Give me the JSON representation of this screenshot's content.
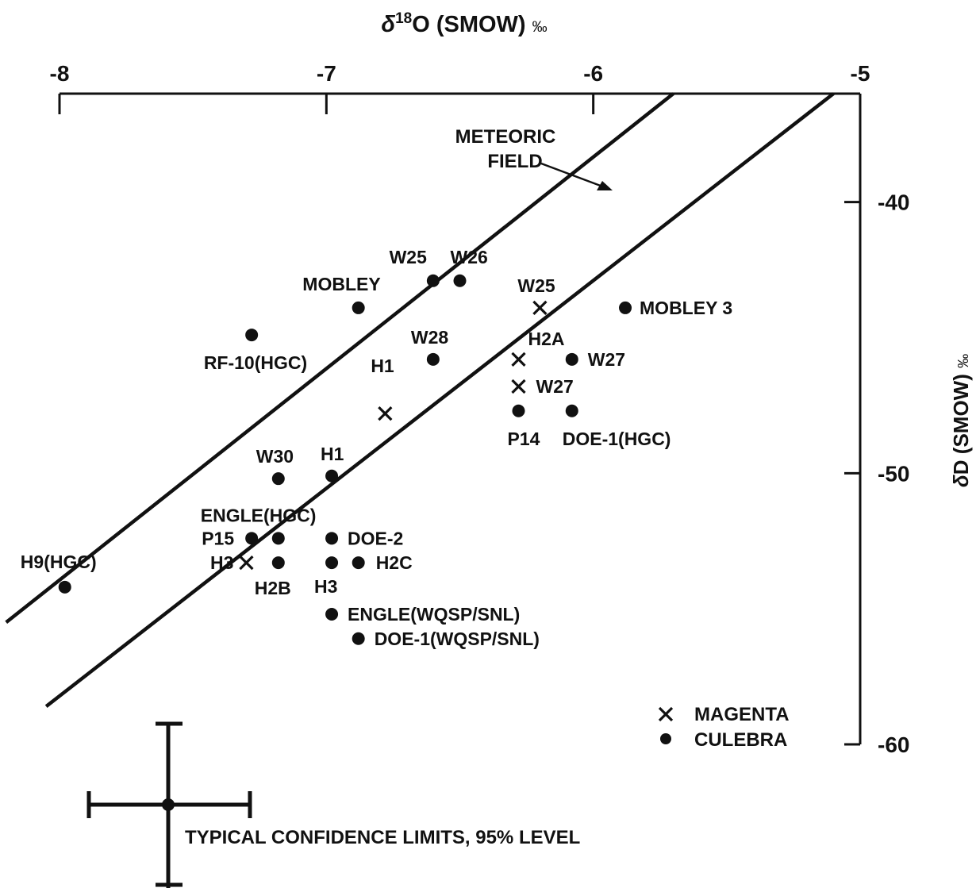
{
  "chart_data": {
    "type": "scatter",
    "title": "",
    "xlabel": "δ18O (SMOW) ‰",
    "xlabel_parts": {
      "delta": "δ",
      "sup": "18",
      "main": "O (SMOW) ",
      "unit": "‰"
    },
    "ylabel": "δD (SMOW) ‰",
    "xlim": [
      -8,
      -5
    ],
    "ylim": [
      -60,
      -36
    ],
    "x_axis_position": "top",
    "y_axis_position": "right",
    "x_ticks": [
      -8,
      -7,
      -6,
      -5
    ],
    "x_tick_labels": [
      "-8",
      "-7",
      "-6",
      "-5"
    ],
    "y_ticks": [
      -40,
      -50,
      -60
    ],
    "y_tick_labels": [
      "-40",
      "-50",
      "-60"
    ],
    "grid": false,
    "legend": {
      "position": "bottom-right",
      "entries": [
        {
          "marker": "x",
          "label": "MAGENTA"
        },
        {
          "marker": "dot",
          "label": "CULEBRA"
        }
      ]
    },
    "series": [
      {
        "name": "MAGENTA",
        "marker": "x",
        "points": [
          {
            "label": "W25",
            "x": -6.2,
            "y": -43.9
          },
          {
            "label": "H2A",
            "x": -6.28,
            "y": -45.8
          },
          {
            "label": "W27",
            "x": -6.28,
            "y": -46.8
          },
          {
            "label": "H1",
            "x": -6.78,
            "y": -47.8
          },
          {
            "label": "H3",
            "x": -7.3,
            "y": -53.3
          }
        ]
      },
      {
        "name": "CULEBRA",
        "marker": "dot",
        "points": [
          {
            "label": "W25",
            "x": -6.6,
            "y": -42.9
          },
          {
            "label": "W26",
            "x": -6.5,
            "y": -42.9
          },
          {
            "label": "MOBLEY",
            "x": -6.88,
            "y": -43.9
          },
          {
            "label": "MOBLEY 3",
            "x": -5.88,
            "y": -43.9
          },
          {
            "label": "RF-10(HGC)",
            "x": -7.28,
            "y": -44.9
          },
          {
            "label": "W28",
            "x": -6.6,
            "y": -45.8
          },
          {
            "label": "W27",
            "x": -6.08,
            "y": -45.8
          },
          {
            "label": "P14",
            "x": -6.28,
            "y": -47.7
          },
          {
            "label": "DOE-1(HGC)",
            "x": -6.08,
            "y": -47.7
          },
          {
            "label": "W30",
            "x": -7.18,
            "y": -50.2
          },
          {
            "label": "H1",
            "x": -6.98,
            "y": -50.1
          },
          {
            "label": "P15",
            "x": -7.28,
            "y": -52.4
          },
          {
            "label": "ENGLE(HGC)",
            "x": -7.18,
            "y": -52.4
          },
          {
            "label": "DOE-2",
            "x": -6.98,
            "y": -52.4
          },
          {
            "label": "H2B",
            "x": -7.18,
            "y": -53.3
          },
          {
            "label": "H3",
            "x": -6.98,
            "y": -53.3
          },
          {
            "label": "H2C",
            "x": -6.88,
            "y": -53.3
          },
          {
            "label": "H9(HGC)",
            "x": -7.98,
            "y": -54.2
          },
          {
            "label": "ENGLE(WQSP/SNL)",
            "x": -6.98,
            "y": -55.2
          },
          {
            "label": "DOE-1(WQSP/SNL)",
            "x": -6.88,
            "y": -56.1
          }
        ]
      }
    ],
    "annotations": [
      {
        "text_lines": [
          "METEORIC",
          "FIELD"
        ],
        "points_to": "meteoric-field-band"
      },
      {
        "text": "TYPICAL CONFIDENCE LIMITS, 95% LEVEL"
      }
    ],
    "meteoric_field_lines": [
      {
        "x1": -8.2,
        "y1": -55.5,
        "x2": -5.7,
        "y2": -36.0
      },
      {
        "x1": -8.05,
        "y1": -58.6,
        "x2": -5.1,
        "y2": -36.0
      }
    ]
  }
}
